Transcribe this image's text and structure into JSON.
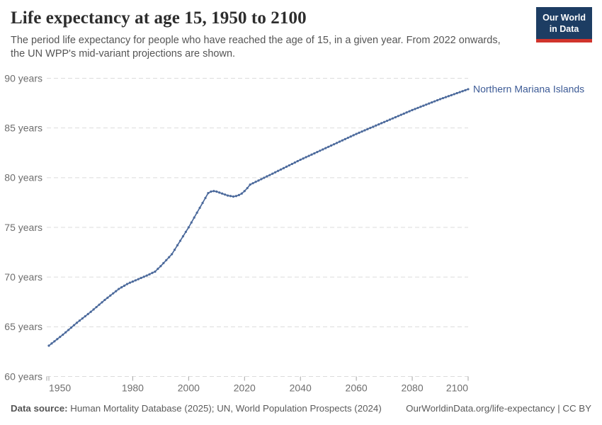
{
  "header": {
    "title": "Life expectancy at age 15, 1950 to 2100",
    "subtitle": "The period life expectancy for people who have reached the age of 15, in a given year. From 2022 onwards, the UN WPP's mid-variant projections are shown.",
    "logo": {
      "line1": "Our World",
      "line2": "in Data",
      "bg_color": "#1d3d63",
      "bar_color": "#d0342c"
    }
  },
  "footer": {
    "sources_label": "Data source:",
    "sources_text": " Human Mortality Database (2025); UN, World Population Prospects (2024)",
    "rights_text": "OurWorldinData.org/life-expectancy | CC BY"
  },
  "chart_data": {
    "type": "line",
    "title": "Life expectancy at age 15, 1950 to 2100",
    "entity_label": "Northern Mariana Islands",
    "xlim": [
      1950,
      2100
    ],
    "ylim": [
      60,
      90
    ],
    "x_ticks": [
      1950,
      1980,
      2000,
      2020,
      2040,
      2060,
      2080,
      2100
    ],
    "y_ticks": [
      60,
      65,
      70,
      75,
      80,
      85,
      90
    ],
    "y_tick_suffix": " years",
    "grid": "horizontal-dashed",
    "legend_position": "end-of-line-label",
    "colors": {
      "line": "#4c6a9c",
      "entity_label": "#3d5b96",
      "axis_text": "#6e6e6e",
      "gridline": "#dcdcdc",
      "tick": "#a3a3a3"
    },
    "series": [
      {
        "name": "Northern Mariana Islands",
        "start_year": 1950,
        "end_year": 2100,
        "values": [
          63.1,
          63.32,
          63.54,
          63.76,
          63.98,
          64.2,
          64.44,
          64.68,
          64.92,
          65.16,
          65.4,
          65.62,
          65.84,
          66.06,
          66.28,
          66.5,
          66.74,
          66.98,
          67.22,
          67.46,
          67.7,
          67.92,
          68.14,
          68.36,
          68.58,
          68.8,
          68.97,
          69.13,
          69.3,
          69.43,
          69.55,
          69.67,
          69.79,
          69.91,
          70.03,
          70.15,
          70.28,
          70.42,
          70.55,
          70.83,
          71.1,
          71.4,
          71.7,
          72.0,
          72.3,
          72.75,
          73.2,
          73.65,
          74.1,
          74.55,
          75.0,
          75.49,
          75.99,
          76.48,
          76.97,
          77.46,
          77.96,
          78.45,
          78.6,
          78.65,
          78.6,
          78.5,
          78.4,
          78.3,
          78.2,
          78.15,
          78.1,
          78.15,
          78.25,
          78.4,
          78.65,
          78.95,
          79.3,
          79.44,
          79.58,
          79.71,
          79.85,
          79.99,
          80.13,
          80.26,
          80.4,
          80.54,
          80.68,
          80.82,
          80.96,
          81.1,
          81.24,
          81.38,
          81.52,
          81.66,
          81.8,
          81.93,
          82.06,
          82.19,
          82.32,
          82.45,
          82.58,
          82.71,
          82.84,
          82.97,
          83.1,
          83.23,
          83.36,
          83.49,
          83.62,
          83.75,
          83.88,
          84.01,
          84.14,
          84.27,
          84.4,
          84.52,
          84.64,
          84.76,
          84.88,
          85.0,
          85.12,
          85.24,
          85.36,
          85.48,
          85.6,
          85.72,
          85.84,
          85.96,
          86.08,
          86.2,
          86.32,
          86.44,
          86.56,
          86.68,
          86.8,
          86.91,
          87.02,
          87.13,
          87.24,
          87.35,
          87.46,
          87.57,
          87.68,
          87.79,
          87.9,
          88.0,
          88.1,
          88.2,
          88.3,
          88.4,
          88.5,
          88.6,
          88.7,
          88.8,
          88.9
        ]
      }
    ]
  }
}
